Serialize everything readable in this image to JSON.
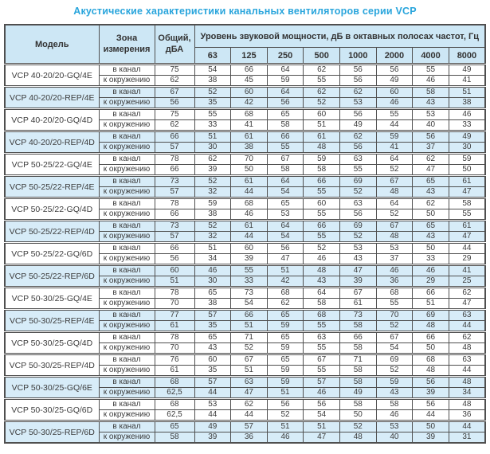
{
  "title": "Акустические характеристики канальных вентиляторов  серии VCP",
  "colors": {
    "title_blue": "#29a5dc",
    "header_fill": "#cde7f5",
    "row_highlight_fill": "#d7ecf8",
    "border": "#4f4f4f",
    "text": "#3c3c3c"
  },
  "table": {
    "headers": {
      "model": "Модель",
      "zone": "Зона\nизмерения",
      "total": "Общий,\nдБА",
      "group": "Уровень звуковой мощности, дБ в октавных полосах частот, Гц"
    },
    "frequencies": [
      "63",
      "125",
      "250",
      "500",
      "1000",
      "2000",
      "4000",
      "8000"
    ],
    "zone_labels": [
      "в канал",
      "к окружению"
    ],
    "rows": [
      {
        "model": "VCP 40-20/20-GQ/4E",
        "highlight": false,
        "in": {
          "total": "75",
          "values": [
            "54",
            "66",
            "64",
            "62",
            "56",
            "56",
            "55",
            "49"
          ]
        },
        "out": {
          "total": "62",
          "values": [
            "38",
            "45",
            "59",
            "55",
            "56",
            "49",
            "46",
            "41"
          ]
        }
      },
      {
        "model": "VCP 40-20/20-REP/4E",
        "highlight": true,
        "in": {
          "total": "67",
          "values": [
            "52",
            "60",
            "64",
            "62",
            "62",
            "60",
            "58",
            "51"
          ]
        },
        "out": {
          "total": "56",
          "values": [
            "35",
            "42",
            "56",
            "52",
            "53",
            "46",
            "43",
            "38"
          ]
        }
      },
      {
        "model": "VCP 40-20/20-GQ/4D",
        "highlight": false,
        "in": {
          "total": "75",
          "values": [
            "55",
            "68",
            "65",
            "60",
            "56",
            "55",
            "53",
            "46"
          ]
        },
        "out": {
          "total": "62",
          "values": [
            "33",
            "41",
            "58",
            "51",
            "49",
            "44",
            "40",
            "33"
          ]
        }
      },
      {
        "model": "VCP 40-20/20-REP/4D",
        "highlight": true,
        "in": {
          "total": "66",
          "values": [
            "51",
            "61",
            "66",
            "61",
            "62",
            "59",
            "56",
            "49"
          ]
        },
        "out": {
          "total": "57",
          "values": [
            "30",
            "38",
            "55",
            "48",
            "56",
            "41",
            "37",
            "30"
          ]
        }
      },
      {
        "model": "VCP 50-25/22-GQ/4E",
        "highlight": false,
        "in": {
          "total": "78",
          "values": [
            "62",
            "70",
            "67",
            "59",
            "63",
            "64",
            "62",
            "59"
          ]
        },
        "out": {
          "total": "66",
          "values": [
            "39",
            "50",
            "58",
            "58",
            "55",
            "52",
            "47",
            "50"
          ]
        }
      },
      {
        "model": "VCP 50-25/22-REP/4E",
        "highlight": true,
        "in": {
          "total": "73",
          "values": [
            "52",
            "61",
            "64",
            "66",
            "69",
            "67",
            "65",
            "61"
          ]
        },
        "out": {
          "total": "57",
          "values": [
            "32",
            "44",
            "54",
            "55",
            "52",
            "48",
            "43",
            "47"
          ]
        }
      },
      {
        "model": "VCP 50-25/22-GQ/4D",
        "highlight": false,
        "in": {
          "total": "78",
          "values": [
            "59",
            "68",
            "65",
            "60",
            "63",
            "64",
            "62",
            "58"
          ]
        },
        "out": {
          "total": "66",
          "values": [
            "38",
            "46",
            "53",
            "55",
            "56",
            "52",
            "50",
            "55"
          ]
        }
      },
      {
        "model": "VCP 50-25/22-REP/4D",
        "highlight": true,
        "in": {
          "total": "73",
          "values": [
            "52",
            "61",
            "64",
            "66",
            "69",
            "67",
            "65",
            "61"
          ]
        },
        "out": {
          "total": "57",
          "values": [
            "32",
            "44",
            "54",
            "55",
            "52",
            "48",
            "43",
            "47"
          ]
        }
      },
      {
        "model": "VCP 50-25/22-GQ/6D",
        "highlight": false,
        "in": {
          "total": "66",
          "values": [
            "51",
            "60",
            "56",
            "52",
            "53",
            "53",
            "50",
            "44"
          ]
        },
        "out": {
          "total": "56",
          "values": [
            "34",
            "39",
            "47",
            "46",
            "43",
            "37",
            "33",
            "29"
          ]
        }
      },
      {
        "model": "VCP 50-25/22-REP/6D",
        "highlight": true,
        "in": {
          "total": "60",
          "values": [
            "46",
            "55",
            "51",
            "48",
            "47",
            "46",
            "46",
            "41"
          ]
        },
        "out": {
          "total": "51",
          "values": [
            "30",
            "33",
            "42",
            "43",
            "39",
            "36",
            "29",
            "25"
          ]
        }
      },
      {
        "model": "VCP 50-30/25-GQ/4E",
        "highlight": false,
        "in": {
          "total": "78",
          "values": [
            "65",
            "73",
            "68",
            "64",
            "67",
            "68",
            "66",
            "62"
          ]
        },
        "out": {
          "total": "70",
          "values": [
            "38",
            "54",
            "62",
            "58",
            "61",
            "55",
            "51",
            "47"
          ]
        }
      },
      {
        "model": "VCP 50-30/25-REP/4E",
        "highlight": true,
        "in": {
          "total": "77",
          "values": [
            "57",
            "66",
            "65",
            "68",
            "73",
            "70",
            "69",
            "63"
          ]
        },
        "out": {
          "total": "61",
          "values": [
            "35",
            "51",
            "59",
            "55",
            "58",
            "52",
            "48",
            "44"
          ]
        }
      },
      {
        "model": "VCP 50-30/25-GQ/4D",
        "highlight": false,
        "in": {
          "total": "78",
          "values": [
            "65",
            "71",
            "65",
            "63",
            "66",
            "67",
            "66",
            "62"
          ]
        },
        "out": {
          "total": "70",
          "values": [
            "43",
            "52",
            "59",
            "55",
            "58",
            "54",
            "50",
            "48"
          ]
        }
      },
      {
        "model": "VCP 50-30/25-REP/4D",
        "highlight": false,
        "in": {
          "total": "76",
          "values": [
            "60",
            "67",
            "65",
            "67",
            "71",
            "69",
            "68",
            "63"
          ]
        },
        "out": {
          "total": "61",
          "values": [
            "35",
            "51",
            "59",
            "55",
            "58",
            "52",
            "48",
            "44"
          ]
        }
      },
      {
        "model": "VCP 50-30/25-GQ/6E",
        "highlight": true,
        "in": {
          "total": "68",
          "values": [
            "57",
            "63",
            "59",
            "57",
            "58",
            "59",
            "56",
            "48"
          ]
        },
        "out": {
          "total": "62,5",
          "values": [
            "44",
            "47",
            "51",
            "46",
            "49",
            "43",
            "39",
            "34"
          ]
        }
      },
      {
        "model": "VCP 50-30/25-GQ/6D",
        "highlight": false,
        "in": {
          "total": "68",
          "values": [
            "53",
            "62",
            "56",
            "56",
            "58",
            "58",
            "56",
            "48"
          ]
        },
        "out": {
          "total": "62,5",
          "values": [
            "44",
            "44",
            "52",
            "54",
            "50",
            "46",
            "44",
            "36"
          ]
        }
      },
      {
        "model": "VCP 50-30/25-REP/6D",
        "highlight": true,
        "in": {
          "total": "65",
          "values": [
            "49",
            "57",
            "51",
            "51",
            "52",
            "53",
            "50",
            "44"
          ]
        },
        "out": {
          "total": "58",
          "values": [
            "39",
            "36",
            "46",
            "47",
            "48",
            "40",
            "39",
            "31"
          ]
        }
      }
    ]
  }
}
